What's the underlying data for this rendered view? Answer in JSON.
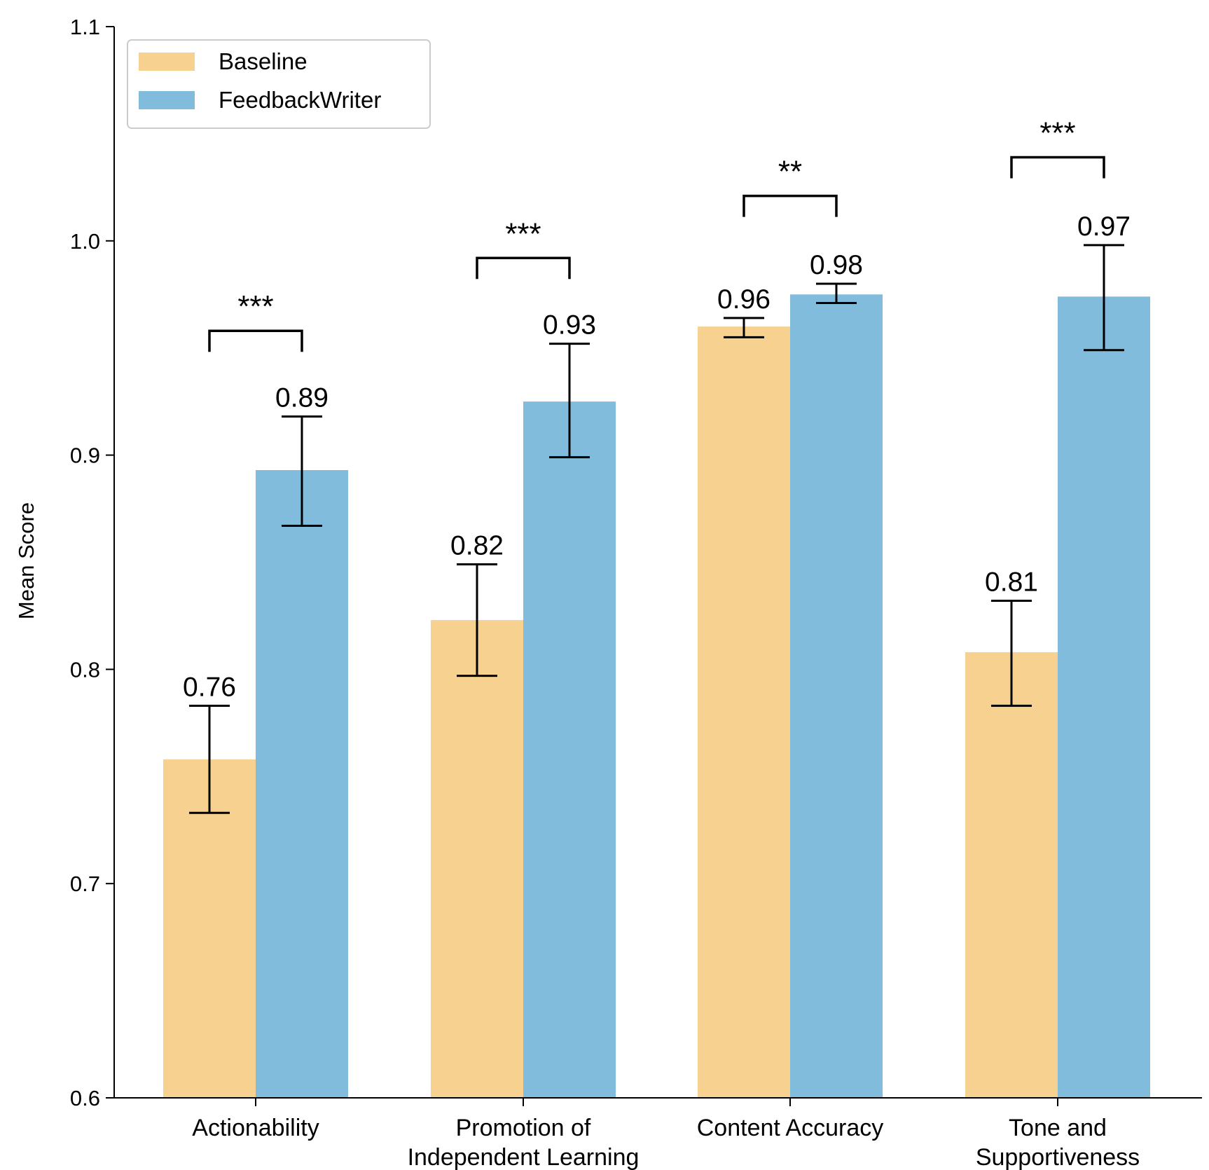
{
  "chart_data": {
    "type": "bar",
    "title": "",
    "xlabel": "",
    "ylabel": "Mean Score",
    "ylim": [
      0.6,
      1.1
    ],
    "yticks": [
      "0.6",
      "0.7",
      "0.8",
      "0.9",
      "1.0",
      "1.1"
    ],
    "grid": false,
    "legend_position": "top-left",
    "categories": [
      {
        "lines": [
          "Actionability"
        ]
      },
      {
        "lines": [
          "Promotion of",
          "Independent Learning"
        ]
      },
      {
        "lines": [
          "Content Accuracy"
        ]
      },
      {
        "lines": [
          "Tone and",
          "Supportiveness"
        ]
      }
    ],
    "series": [
      {
        "name": "Baseline",
        "color": "#f6d190",
        "values": [
          0.758,
          0.823,
          0.96,
          0.808
        ],
        "error_low": [
          0.733,
          0.797,
          0.955,
          0.783
        ],
        "error_high": [
          0.783,
          0.849,
          0.964,
          0.832
        ],
        "labels": [
          "0.76",
          "0.82",
          "0.96",
          "0.81"
        ]
      },
      {
        "name": "FeedbackWriter",
        "color": "#82bcdc",
        "values": [
          0.893,
          0.925,
          0.975,
          0.974
        ],
        "error_low": [
          0.867,
          0.899,
          0.971,
          0.949
        ],
        "error_high": [
          0.918,
          0.952,
          0.98,
          0.998
        ],
        "labels": [
          "0.89",
          "0.93",
          "0.98",
          "0.97"
        ]
      }
    ],
    "significance": [
      {
        "category": 0,
        "label": "***",
        "bracket_level": 0.958
      },
      {
        "category": 1,
        "label": "***",
        "bracket_level": 0.992
      },
      {
        "category": 2,
        "label": "**",
        "bracket_level": 1.021
      },
      {
        "category": 3,
        "label": "***",
        "bracket_level": 1.039
      }
    ]
  }
}
